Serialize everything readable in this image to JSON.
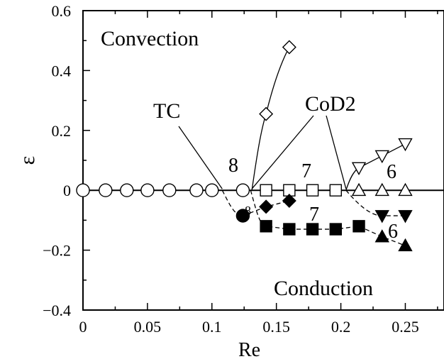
{
  "chart_data": {
    "type": "scatter",
    "xlabel": "Re",
    "ylabel": "ε",
    "xlim": [
      0,
      0.28
    ],
    "ylim": [
      -0.4,
      0.6
    ],
    "x_ticks": [
      0,
      0.05,
      0.1,
      0.15,
      0.2,
      0.25
    ],
    "x_tick_labels": [
      "0",
      "0.05",
      "0.1",
      "0.15",
      "0.2",
      "0.25"
    ],
    "y_ticks": [
      -0.4,
      -0.2,
      0,
      0.2,
      0.4,
      0.6
    ],
    "y_tick_labels": [
      "−0.4",
      "−0.2",
      "0",
      "0.2",
      "0.4",
      "0.6"
    ],
    "grid": false,
    "series": [
      {
        "marker": "circle-open",
        "x": [
          0,
          0.0175,
          0.034,
          0.05,
          0.067,
          0.088,
          0.1,
          0.124
        ],
        "y": [
          0,
          0,
          0,
          0,
          0,
          0,
          0,
          0
        ]
      },
      {
        "marker": "square-open",
        "x": [
          0.142,
          0.16,
          0.178,
          0.196
        ],
        "y": [
          0,
          0,
          0,
          0
        ]
      },
      {
        "marker": "triangle-up-open",
        "x": [
          0.214,
          0.232,
          0.25
        ],
        "y": [
          0,
          0,
          0
        ]
      },
      {
        "marker": "diamond-open",
        "x": [
          0.142,
          0.16
        ],
        "y": [
          0.255,
          0.478
        ]
      },
      {
        "marker": "triangle-down-open",
        "x": [
          0.214,
          0.232,
          0.25
        ],
        "y": [
          0.075,
          0.115,
          0.155
        ]
      },
      {
        "marker": "circle-filled",
        "x": [
          0.124
        ],
        "y": [
          -0.085
        ]
      },
      {
        "marker": "diamond-filled",
        "x": [
          0.142,
          0.16
        ],
        "y": [
          -0.055,
          -0.035
        ]
      },
      {
        "marker": "square-filled",
        "x": [
          0.142,
          0.16,
          0.178,
          0.196,
          0.214
        ],
        "y": [
          -0.12,
          -0.13,
          -0.13,
          -0.13,
          -0.12
        ]
      },
      {
        "marker": "triangle-down-filled",
        "x": [
          0.232,
          0.25
        ],
        "y": [
          -0.085,
          -0.085
        ]
      },
      {
        "marker": "triangle-up-filled",
        "x": [
          0.232,
          0.25
        ],
        "y": [
          -0.155,
          -0.185
        ]
      }
    ],
    "annotations": {
      "region_top": "Convection",
      "region_bottom": "Conduction",
      "tc": "TC",
      "cod2": "CoD2",
      "n8_upper": "8",
      "n8_small": "8",
      "n7_upper": "7",
      "n7_lower": "7",
      "n6_upper": "6",
      "n6_lower": "6"
    },
    "colors": {
      "ink": "#000000",
      "background": "#ffffff"
    }
  }
}
